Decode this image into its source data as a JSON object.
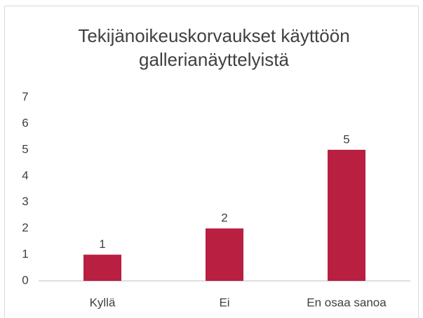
{
  "chart_data": {
    "type": "bar",
    "title": "Tekijänoikeuskorvaukset käyttöön gallerianäyttelyistä",
    "categories": [
      "Kyllä",
      "Ei",
      "En osaa sanoa"
    ],
    "values": [
      1,
      2,
      5
    ],
    "color": "#b81f40",
    "ylim": [
      0,
      7
    ],
    "yticks": [
      0,
      1,
      2,
      3,
      4,
      5,
      6,
      7
    ],
    "grid": false
  }
}
